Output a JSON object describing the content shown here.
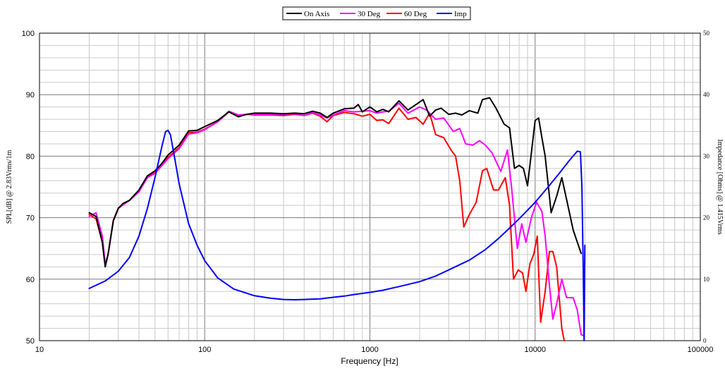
{
  "chart_data": {
    "type": "line",
    "title": "",
    "xlabel": "Frequency [Hz]",
    "ylabel": "SPL[dB] @ 2.83Vrms/1m",
    "y2label": "Impedance [Ohms] @ 1.415Vrms",
    "x_scale": "log",
    "xlim": [
      10,
      100000
    ],
    "ylim": [
      50,
      100
    ],
    "y2lim": [
      0,
      50
    ],
    "grid": true,
    "legend_position": "top-center",
    "x_ticks": [
      "10",
      "100",
      "1000",
      "10000",
      "100000"
    ],
    "y_ticks": [
      "50",
      "60",
      "70",
      "80",
      "90",
      "100"
    ],
    "y2_ticks": [
      "0",
      "10",
      "20",
      "30",
      "40",
      "50"
    ],
    "series": [
      {
        "name": "On Axis",
        "color": "#000000",
        "axis": "left",
        "points": [
          [
            20,
            70.8
          ],
          [
            22,
            70.2
          ],
          [
            24,
            66
          ],
          [
            25,
            62
          ],
          [
            26,
            64
          ],
          [
            28,
            69.5
          ],
          [
            30,
            71.5
          ],
          [
            32,
            72.3
          ],
          [
            35,
            72.8
          ],
          [
            40,
            74.5
          ],
          [
            45,
            76.8
          ],
          [
            50,
            77.6
          ],
          [
            55,
            78.8
          ],
          [
            60,
            80.2
          ],
          [
            70,
            81.8
          ],
          [
            80,
            84.1
          ],
          [
            90,
            84.2
          ],
          [
            100,
            84.8
          ],
          [
            120,
            85.8
          ],
          [
            140,
            87.2
          ],
          [
            160,
            86.4
          ],
          [
            180,
            86.8
          ],
          [
            200,
            87
          ],
          [
            250,
            87
          ],
          [
            300,
            86.9
          ],
          [
            350,
            87
          ],
          [
            400,
            86.9
          ],
          [
            450,
            87.3
          ],
          [
            500,
            87
          ],
          [
            550,
            86.3
          ],
          [
            600,
            87
          ],
          [
            700,
            87.7
          ],
          [
            800,
            87.8
          ],
          [
            850,
            88.4
          ],
          [
            900,
            87.2
          ],
          [
            1000,
            88
          ],
          [
            1100,
            87.2
          ],
          [
            1200,
            87.6
          ],
          [
            1300,
            87.2
          ],
          [
            1500,
            89
          ],
          [
            1700,
            87.5
          ],
          [
            2000,
            88.8
          ],
          [
            2100,
            89.2
          ],
          [
            2300,
            86.5
          ],
          [
            2500,
            87.5
          ],
          [
            2700,
            87.8
          ],
          [
            3000,
            86.8
          ],
          [
            3300,
            87
          ],
          [
            3600,
            86.7
          ],
          [
            4000,
            87.4
          ],
          [
            4500,
            87
          ],
          [
            4800,
            89.2
          ],
          [
            5300,
            89.5
          ],
          [
            5800,
            87.8
          ],
          [
            6500,
            85.2
          ],
          [
            7000,
            84.6
          ],
          [
            7500,
            78
          ],
          [
            8000,
            78.5
          ],
          [
            8500,
            78
          ],
          [
            9000,
            75.2
          ],
          [
            9500,
            80.6
          ],
          [
            10000,
            85.8
          ],
          [
            10500,
            86.2
          ],
          [
            11000,
            83
          ],
          [
            11500,
            80
          ],
          [
            12500,
            70.8
          ],
          [
            13500,
            73.5
          ],
          [
            14500,
            76.5
          ],
          [
            15500,
            73
          ],
          [
            17000,
            68
          ],
          [
            19000,
            64.2
          ]
        ]
      },
      {
        "name": "30 Deg",
        "color": "#ff00ff",
        "axis": "left",
        "points": [
          [
            20,
            70.2
          ],
          [
            22,
            70.8
          ],
          [
            24,
            67
          ],
          [
            25,
            62.5
          ],
          [
            26,
            64
          ],
          [
            28,
            69.5
          ],
          [
            30,
            71.5
          ],
          [
            35,
            72.8
          ],
          [
            40,
            74.2
          ],
          [
            45,
            76.5
          ],
          [
            50,
            77.2
          ],
          [
            60,
            79.6
          ],
          [
            70,
            81.2
          ],
          [
            80,
            83.6
          ],
          [
            90,
            83.8
          ],
          [
            100,
            84.3
          ],
          [
            120,
            85.6
          ],
          [
            140,
            87.3
          ],
          [
            160,
            86.7
          ],
          [
            180,
            86.8
          ],
          [
            200,
            86.8
          ],
          [
            250,
            86.8
          ],
          [
            300,
            86.8
          ],
          [
            350,
            86.9
          ],
          [
            400,
            86.6
          ],
          [
            450,
            87.1
          ],
          [
            500,
            86.7
          ],
          [
            550,
            86.2
          ],
          [
            600,
            86.7
          ],
          [
            700,
            87.4
          ],
          [
            800,
            87.2
          ],
          [
            1000,
            87.4
          ],
          [
            1100,
            87
          ],
          [
            1200,
            87.2
          ],
          [
            1300,
            87.3
          ],
          [
            1500,
            88.6
          ],
          [
            1700,
            87
          ],
          [
            2000,
            88
          ],
          [
            2200,
            87.5
          ],
          [
            2500,
            86
          ],
          [
            2800,
            86.2
          ],
          [
            3200,
            84
          ],
          [
            3500,
            84.5
          ],
          [
            3800,
            82
          ],
          [
            4200,
            81.8
          ],
          [
            4600,
            82.5
          ],
          [
            5000,
            81.8
          ],
          [
            5500,
            80.5
          ],
          [
            6200,
            77.5
          ],
          [
            6800,
            81
          ],
          [
            7200,
            75
          ],
          [
            7800,
            65
          ],
          [
            8300,
            69
          ],
          [
            8800,
            66
          ],
          [
            9500,
            70
          ],
          [
            10200,
            72.5
          ],
          [
            11000,
            71
          ],
          [
            11500,
            67
          ],
          [
            12200,
            59
          ],
          [
            12800,
            53.5
          ],
          [
            13500,
            56
          ],
          [
            14500,
            60
          ],
          [
            15500,
            57
          ],
          [
            17000,
            57
          ],
          [
            18000,
            55
          ],
          [
            19000,
            51
          ],
          [
            19700,
            50.8
          ]
        ]
      },
      {
        "name": "60 Deg",
        "color": "#ff0000",
        "axis": "left",
        "points": [
          [
            20,
            70.5
          ],
          [
            22,
            69.8
          ],
          [
            24,
            66
          ],
          [
            25,
            62.2
          ],
          [
            26,
            64
          ],
          [
            28,
            69.6
          ],
          [
            30,
            71.6
          ],
          [
            35,
            72.8
          ],
          [
            40,
            74.3
          ],
          [
            45,
            76.6
          ],
          [
            50,
            77.3
          ],
          [
            60,
            79.8
          ],
          [
            70,
            81.4
          ],
          [
            80,
            83.8
          ],
          [
            90,
            83.9
          ],
          [
            100,
            84.4
          ],
          [
            120,
            85.6
          ],
          [
            140,
            87.2
          ],
          [
            160,
            86.6
          ],
          [
            180,
            86.8
          ],
          [
            200,
            86.7
          ],
          [
            250,
            86.7
          ],
          [
            300,
            86.6
          ],
          [
            350,
            86.8
          ],
          [
            400,
            86.6
          ],
          [
            450,
            87
          ],
          [
            500,
            86.5
          ],
          [
            550,
            85.6
          ],
          [
            600,
            86.6
          ],
          [
            700,
            87.1
          ],
          [
            800,
            86.9
          ],
          [
            900,
            86.5
          ],
          [
            1000,
            86.8
          ],
          [
            1100,
            85.8
          ],
          [
            1200,
            85.9
          ],
          [
            1300,
            85.3
          ],
          [
            1500,
            87.8
          ],
          [
            1700,
            86
          ],
          [
            1900,
            86.3
          ],
          [
            2100,
            85.2
          ],
          [
            2300,
            87
          ],
          [
            2500,
            83.5
          ],
          [
            2800,
            83
          ],
          [
            3100,
            81
          ],
          [
            3300,
            80
          ],
          [
            3500,
            76
          ],
          [
            3700,
            68.5
          ],
          [
            4000,
            70.5
          ],
          [
            4400,
            72.5
          ],
          [
            4800,
            77.6
          ],
          [
            5100,
            78
          ],
          [
            5600,
            74.5
          ],
          [
            6000,
            74.5
          ],
          [
            6600,
            76.5
          ],
          [
            7000,
            72
          ],
          [
            7400,
            60
          ],
          [
            7900,
            61.5
          ],
          [
            8400,
            61
          ],
          [
            8800,
            58
          ],
          [
            9300,
            62.5
          ],
          [
            9800,
            64
          ],
          [
            10300,
            67
          ],
          [
            10800,
            53
          ],
          [
            11500,
            58
          ],
          [
            12200,
            64.5
          ],
          [
            12800,
            64.5
          ],
          [
            13500,
            62
          ],
          [
            14500,
            52
          ],
          [
            15000,
            50
          ]
        ]
      },
      {
        "name": "Imp",
        "color": "#0000ff",
        "axis": "right",
        "points": [
          [
            20,
            8.5
          ],
          [
            25,
            9.7
          ],
          [
            30,
            11.3
          ],
          [
            35,
            13.5
          ],
          [
            40,
            17
          ],
          [
            45,
            21.5
          ],
          [
            50,
            26.5
          ],
          [
            55,
            31.5
          ],
          [
            58,
            34
          ],
          [
            60,
            34.2
          ],
          [
            62,
            33.5
          ],
          [
            66,
            29.5
          ],
          [
            70,
            25.5
          ],
          [
            80,
            19
          ],
          [
            90,
            15.5
          ],
          [
            100,
            13
          ],
          [
            120,
            10.2
          ],
          [
            150,
            8.4
          ],
          [
            200,
            7.3
          ],
          [
            250,
            6.9
          ],
          [
            300,
            6.7
          ],
          [
            350,
            6.65
          ],
          [
            400,
            6.7
          ],
          [
            450,
            6.75
          ],
          [
            500,
            6.8
          ],
          [
            600,
            7.05
          ],
          [
            700,
            7.25
          ],
          [
            800,
            7.5
          ],
          [
            1000,
            7.85
          ],
          [
            1200,
            8.2
          ],
          [
            1500,
            8.8
          ],
          [
            2000,
            9.6
          ],
          [
            2500,
            10.5
          ],
          [
            3000,
            11.5
          ],
          [
            4000,
            13.1
          ],
          [
            5000,
            14.8
          ],
          [
            6000,
            16.6
          ],
          [
            7000,
            18.3
          ],
          [
            8000,
            19.8
          ],
          [
            10000,
            22.5
          ],
          [
            12000,
            25
          ],
          [
            14000,
            27.2
          ],
          [
            16000,
            29.2
          ],
          [
            18000,
            30.8
          ],
          [
            18800,
            30.7
          ],
          [
            19200,
            25
          ],
          [
            19600,
            10
          ],
          [
            19800,
            0
          ],
          [
            20000,
            15.5
          ]
        ]
      }
    ]
  }
}
